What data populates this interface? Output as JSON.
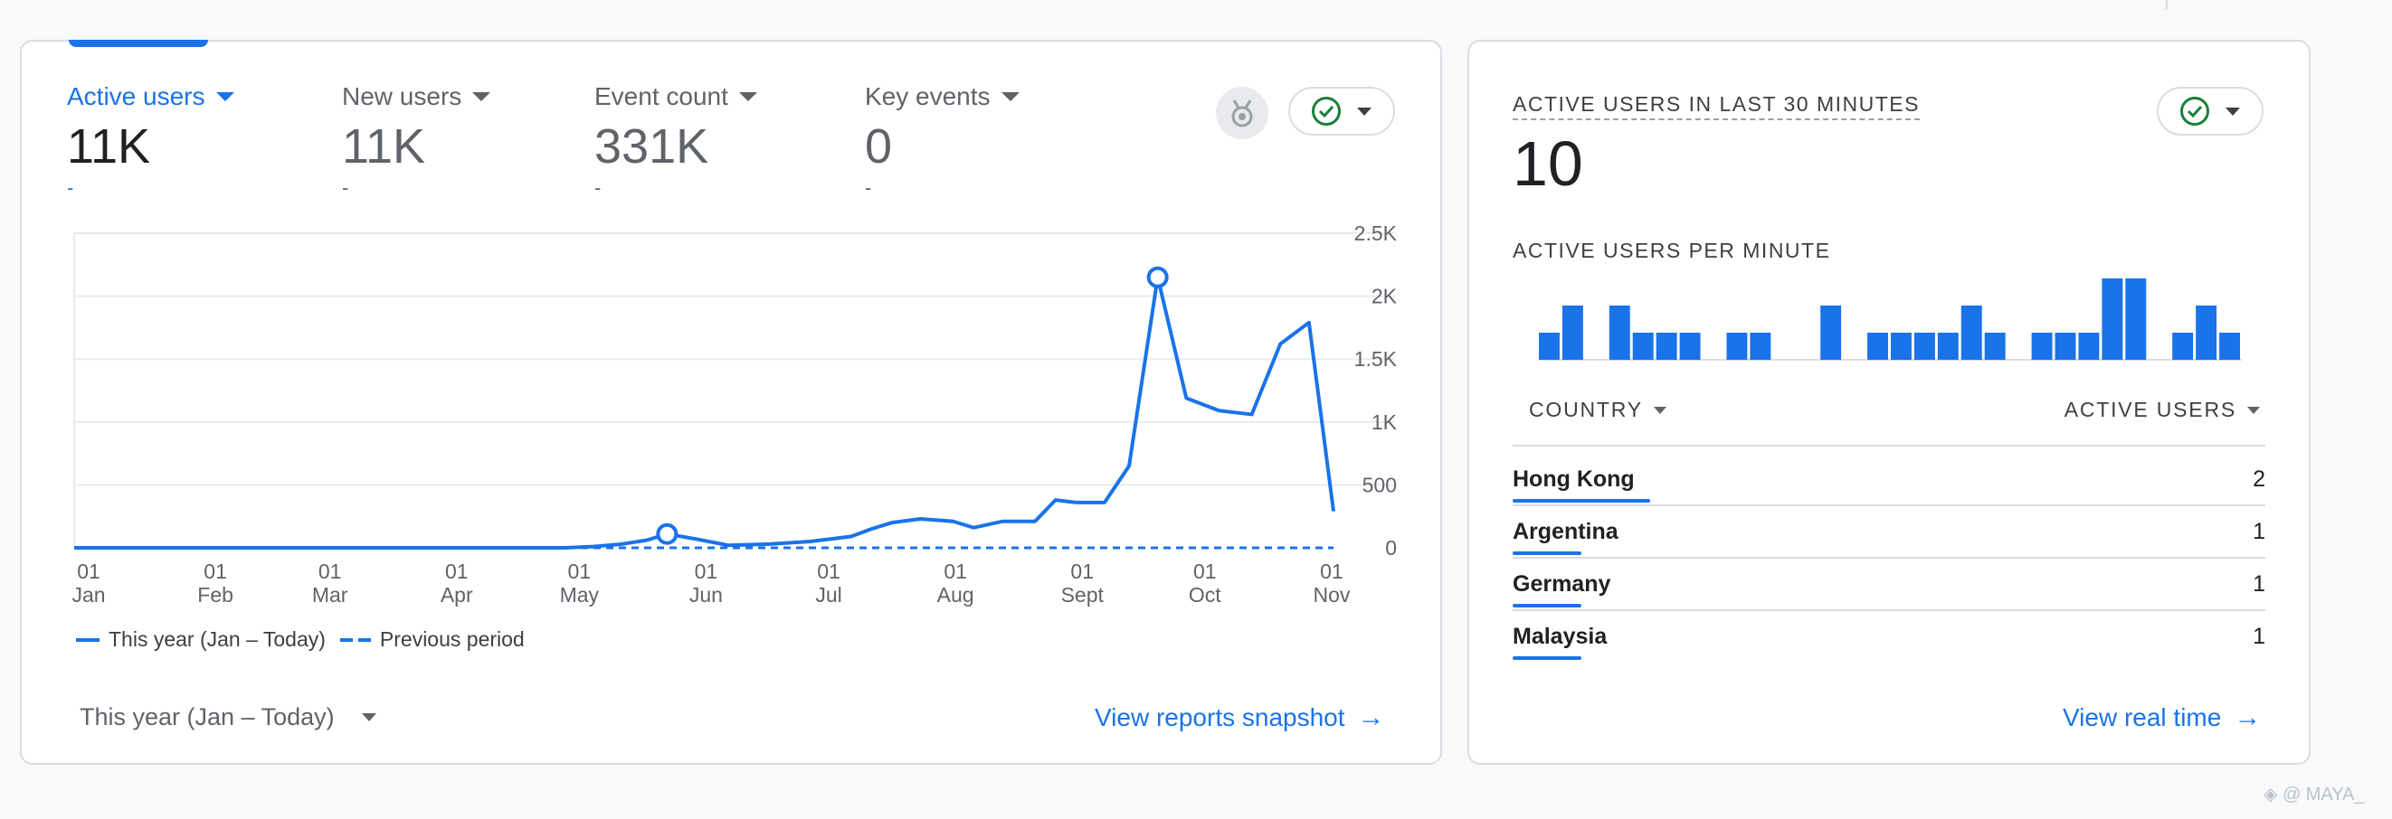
{
  "metrics": [
    {
      "label": "Active users",
      "value": "11K",
      "delta": "-",
      "active": true
    },
    {
      "label": "New users",
      "value": "11K",
      "delta": "-"
    },
    {
      "label": "Event count",
      "value": "331K",
      "delta": "-"
    },
    {
      "label": "Key events",
      "value": "0",
      "delta": "-"
    }
  ],
  "chart_data": {
    "type": "line",
    "x_tick_labels": [
      [
        "01",
        "Jan"
      ],
      [
        "01",
        "Feb"
      ],
      [
        "01",
        "Mar"
      ],
      [
        "01",
        "Apr"
      ],
      [
        "01",
        "May"
      ],
      [
        "01",
        "Jun"
      ],
      [
        "01",
        "Jul"
      ],
      [
        "01",
        "Aug"
      ],
      [
        "01",
        "Sept"
      ],
      [
        "01",
        "Oct"
      ],
      [
        "01",
        "Nov"
      ]
    ],
    "y_ticks": [
      "0",
      "500",
      "1K",
      "1.5K",
      "2K",
      "2.5K"
    ],
    "ylim": [
      0,
      2500
    ],
    "x_range_days": [
      0,
      308
    ],
    "grid": true,
    "series": [
      {
        "name": "This year (Jan – Today)",
        "style": "solid",
        "color": "#1a73e8",
        "points": [
          [
            0,
            0
          ],
          [
            120,
            0
          ],
          [
            127,
            10
          ],
          [
            134,
            30
          ],
          [
            140,
            60
          ],
          [
            145,
            110
          ],
          [
            152,
            70
          ],
          [
            160,
            20
          ],
          [
            170,
            30
          ],
          [
            180,
            50
          ],
          [
            190,
            90
          ],
          [
            195,
            150
          ],
          [
            200,
            200
          ],
          [
            207,
            230
          ],
          [
            215,
            210
          ],
          [
            220,
            160
          ],
          [
            227,
            210
          ],
          [
            235,
            210
          ],
          [
            240,
            380
          ],
          [
            245,
            360
          ],
          [
            252,
            360
          ],
          [
            258,
            650
          ],
          [
            265,
            2150
          ],
          [
            272,
            1190
          ],
          [
            280,
            1090
          ],
          [
            288,
            1060
          ],
          [
            295,
            1620
          ],
          [
            302,
            1790
          ],
          [
            308,
            290
          ]
        ],
        "markers": [
          [
            145,
            110
          ],
          [
            265,
            2150
          ]
        ]
      },
      {
        "name": "Previous period",
        "style": "dashed",
        "color": "#1a73e8",
        "points": [
          [
            0,
            0
          ],
          [
            308,
            0
          ]
        ]
      }
    ]
  },
  "legend": [
    "This year (Jan – Today)",
    "Previous period"
  ],
  "period_select": "This year (Jan – Today)",
  "view_snapshot": "View reports snapshot",
  "realtime": {
    "title": "ACTIVE USERS IN LAST 30 MINUTES",
    "value": "10",
    "per_minute_label": "ACTIVE USERS PER MINUTE",
    "per_minute": [
      1,
      2,
      0,
      2,
      1,
      1,
      1,
      0,
      1,
      1,
      0,
      0,
      2,
      0,
      1,
      1,
      1,
      1,
      2,
      1,
      0,
      1,
      1,
      1,
      3,
      3,
      0,
      1,
      2,
      1
    ],
    "col_country": "COUNTRY",
    "col_users": "ACTIVE USERS",
    "rows": [
      {
        "country": "Hong Kong",
        "users": "2",
        "share": 1.0
      },
      {
        "country": "Argentina",
        "users": "1",
        "share": 0.5
      },
      {
        "country": "Germany",
        "users": "1",
        "share": 0.5
      },
      {
        "country": "Malaysia",
        "users": "1",
        "share": 0.5
      }
    ],
    "view_realtime": "View real time"
  },
  "watermark": "◈ @ MAYA_",
  "colors": {
    "accent": "#1a73e8",
    "check": "#188038"
  }
}
